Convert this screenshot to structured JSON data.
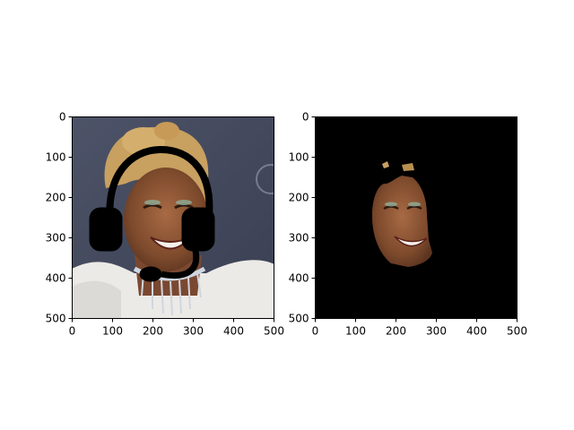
{
  "chart_data": [
    {
      "type": "image",
      "title": "",
      "xlabel": "",
      "ylabel": "",
      "xlim": [
        0,
        500
      ],
      "ylim": [
        500,
        0
      ],
      "xticks": [
        "0",
        "100",
        "200",
        "300",
        "400",
        "500"
      ],
      "yticks": [
        "0",
        "100",
        "200",
        "300",
        "400",
        "500"
      ],
      "content": "photo of smiling woman with headset overlay",
      "headset_color": "#000000"
    },
    {
      "type": "image",
      "title": "",
      "xlabel": "",
      "ylabel": "",
      "xlim": [
        0,
        500
      ],
      "ylim": [
        500,
        0
      ],
      "xticks": [
        "0",
        "100",
        "200",
        "300",
        "400",
        "500"
      ],
      "yticks": [
        "0",
        "100",
        "200",
        "300",
        "400",
        "500"
      ],
      "content": "segmented face on black background",
      "background_color": "#000000"
    }
  ]
}
